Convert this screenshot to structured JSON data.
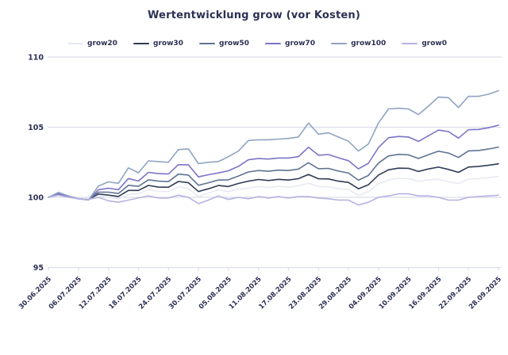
{
  "chart_data": {
    "type": "line",
    "title": "Wertentwicklung grow (vor Kosten)",
    "xlabel": "",
    "ylabel": "",
    "ylim": [
      95,
      110
    ],
    "y_ticks": [
      95,
      100,
      105,
      110
    ],
    "grid": "horizontal",
    "legend_position": "top",
    "x_tick_labels": [
      "30.06.2025",
      "06.07.2025",
      "12.07.2025",
      "18.07.2025",
      "24.07.2025",
      "30.07.2025",
      "05.08.2025",
      "11.08.2025",
      "17.08.2025",
      "23.08.2025",
      "29.08.2025",
      "04.09.2025",
      "10.09.2025",
      "16.09.2025",
      "22.09.2025",
      "28.09.2025"
    ],
    "x_days": [
      0,
      2,
      4,
      6,
      8,
      10,
      12,
      14,
      16,
      18,
      20,
      22,
      24,
      26,
      28,
      30,
      32,
      34,
      36,
      38,
      40,
      42,
      44,
      46,
      48,
      50,
      52,
      54,
      56,
      58,
      60,
      62,
      64,
      66,
      68,
      70,
      72,
      74,
      76,
      78,
      80,
      82,
      84,
      86,
      88,
      90
    ],
    "x_total_days": 90,
    "series": [
      {
        "name": "grow20",
        "color": "#e7eaf2",
        "values": [
          100,
          100.19,
          100.02,
          99.9,
          99.84,
          100.14,
          99.99,
          99.89,
          100.21,
          100.27,
          100.55,
          100.42,
          100.41,
          100.74,
          100.62,
          100.06,
          100.29,
          100.54,
          100.4,
          100.59,
          100.65,
          100.78,
          100.7,
          100.79,
          100.72,
          100.82,
          101.0,
          100.77,
          100.75,
          100.61,
          100.56,
          100.14,
          100.4,
          100.95,
          101.22,
          101.35,
          101.34,
          101.14,
          101.25,
          101.29,
          101.11,
          100.99,
          101.3,
          101.34,
          101.41,
          101.49
        ]
      },
      {
        "name": "grow30",
        "color": "#2f3c55",
        "values": [
          100,
          100.21,
          100.03,
          99.9,
          99.84,
          100.24,
          100.16,
          100.06,
          100.49,
          100.49,
          100.85,
          100.73,
          100.72,
          101.13,
          101.04,
          100.41,
          100.61,
          100.84,
          100.77,
          100.99,
          101.15,
          101.27,
          101.2,
          101.28,
          101.23,
          101.33,
          101.63,
          101.32,
          101.31,
          101.15,
          101.06,
          100.61,
          100.9,
          101.59,
          101.96,
          102.08,
          102.07,
          101.84,
          102.02,
          102.15,
          101.99,
          101.78,
          102.16,
          102.2,
          102.28,
          102.39
        ]
      },
      {
        "name": "grow50",
        "color": "#5e7492",
        "values": [
          100,
          100.24,
          100.05,
          99.9,
          99.83,
          100.37,
          100.37,
          100.27,
          100.86,
          100.78,
          101.25,
          101.15,
          101.12,
          101.65,
          101.59,
          100.86,
          101.04,
          101.23,
          101.25,
          101.52,
          101.81,
          101.91,
          101.86,
          101.94,
          101.91,
          102.01,
          102.47,
          102.04,
          102.06,
          101.87,
          101.73,
          101.22,
          101.56,
          102.44,
          102.95,
          103.06,
          103.03,
          102.77,
          103.04,
          103.29,
          103.16,
          102.84,
          103.31,
          103.34,
          103.44,
          103.58
        ]
      },
      {
        "name": "grow70",
        "color": "#7b74c9",
        "values": [
          100,
          100.28,
          100.07,
          99.9,
          99.82,
          100.54,
          100.65,
          100.55,
          101.34,
          101.16,
          101.78,
          101.69,
          101.66,
          102.33,
          102.31,
          101.46,
          101.61,
          101.74,
          101.89,
          102.21,
          102.68,
          102.76,
          102.73,
          102.8,
          102.8,
          102.9,
          103.57,
          103.0,
          103.05,
          102.82,
          102.61,
          102.03,
          102.43,
          103.55,
          104.25,
          104.34,
          104.3,
          103.99,
          104.39,
          104.79,
          104.69,
          104.22,
          104.82,
          104.84,
          104.96,
          105.14
        ]
      },
      {
        "name": "grow100",
        "color": "#8fa4c2",
        "values": [
          100,
          100.35,
          100.1,
          99.9,
          99.8,
          100.8,
          101.1,
          101.0,
          102.1,
          101.75,
          102.6,
          102.55,
          102.5,
          103.4,
          103.45,
          102.4,
          102.5,
          102.55,
          102.9,
          103.3,
          104.05,
          104.1,
          104.1,
          104.15,
          104.2,
          104.3,
          105.3,
          104.5,
          104.6,
          104.3,
          104.0,
          103.3,
          103.8,
          105.3,
          106.3,
          106.35,
          106.3,
          105.9,
          106.5,
          107.15,
          107.1,
          106.4,
          107.2,
          107.2,
          107.35,
          107.6
        ]
      },
      {
        "name": "grow0",
        "color": "#b6b2e0",
        "values": [
          100,
          100.15,
          100.0,
          99.9,
          99.85,
          100.0,
          99.75,
          99.65,
          99.8,
          99.95,
          100.1,
          99.95,
          99.95,
          100.15,
          100.0,
          99.55,
          99.8,
          100.1,
          99.85,
          100.0,
          99.9,
          100.05,
          99.95,
          100.05,
          99.95,
          100.05,
          100.05,
          99.95,
          99.9,
          99.8,
          99.8,
          99.45,
          99.65,
          100.0,
          100.1,
          100.25,
          100.25,
          100.1,
          100.1,
          100.0,
          99.8,
          99.8,
          100.0,
          100.05,
          100.1,
          100.15
        ]
      }
    ],
    "colors": {
      "text": "#2c3054",
      "gridline": "#dcdde9"
    }
  }
}
